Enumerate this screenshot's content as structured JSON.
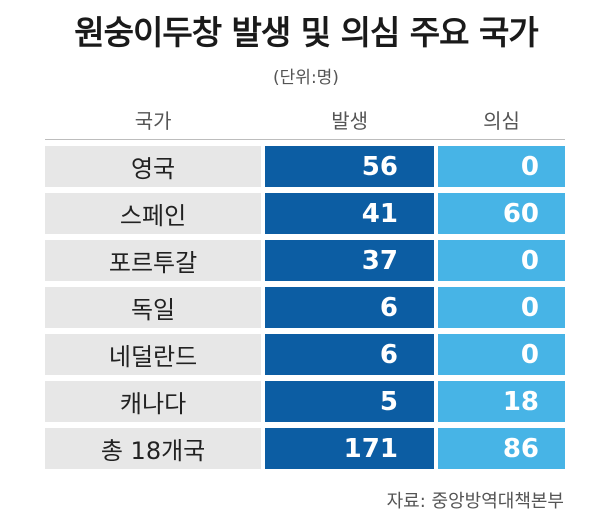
{
  "title": "원숭이두창 발생 및 의심 주요 국가",
  "unit": "(단위:명)",
  "headers": {
    "country": "국가",
    "occurrence": "발생",
    "suspected": "의심"
  },
  "rows": [
    {
      "country": "영국",
      "occurrence": "56",
      "suspected": "0"
    },
    {
      "country": "스페인",
      "occurrence": "41",
      "suspected": "60"
    },
    {
      "country": "포르투갈",
      "occurrence": "37",
      "suspected": "0"
    },
    {
      "country": "독일",
      "occurrence": "6",
      "suspected": "0"
    },
    {
      "country": "네덜란드",
      "occurrence": "6",
      "suspected": "0"
    },
    {
      "country": "캐나다",
      "occurrence": "5",
      "suspected": "18"
    },
    {
      "country": "총 18개국",
      "occurrence": "171",
      "suspected": "86"
    }
  ],
  "source": "자료: 중앙방역대책본부",
  "colors": {
    "occurrence": "#0c5da3",
    "suspected": "#47b4e6",
    "country_bg": "#e7e7e7"
  }
}
